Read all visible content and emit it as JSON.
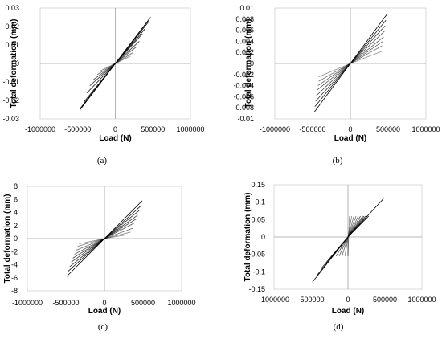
{
  "chart_data": [
    {
      "type": "line",
      "caption": "(a)",
      "xlabel": "Load (N)",
      "ylabel": "Total deformation (mm)",
      "xlim": [
        -1000000,
        1000000
      ],
      "ylim": [
        -0.03,
        0.03
      ],
      "xticks": [
        "-1000000",
        "-500000",
        "0",
        "500000",
        "1000000"
      ],
      "yticks": [
        "-0.03",
        "-0.02",
        "-0.01",
        "0",
        "0.01",
        "0.02",
        "0.03"
      ],
      "grid": false,
      "color": "#000000",
      "series": [
        {
          "x": [
            -470000,
            0,
            470000
          ],
          "y": [
            -0.025,
            0,
            0.025
          ]
        },
        {
          "x": [
            -460000,
            0,
            450000
          ],
          "y": [
            -0.024,
            0,
            0.023
          ]
        },
        {
          "x": [
            -420000,
            0,
            400000
          ],
          "y": [
            -0.021,
            0,
            0.019
          ]
        },
        {
          "x": [
            -380000,
            0,
            360000
          ],
          "y": [
            -0.016,
            0,
            0.016
          ]
        },
        {
          "x": [
            -340000,
            0,
            320000
          ],
          "y": [
            -0.012,
            0,
            0.012
          ]
        },
        {
          "x": [
            -300000,
            0,
            280000
          ],
          "y": [
            -0.009,
            0,
            0.009
          ]
        },
        {
          "x": [
            -240000,
            0,
            240000
          ],
          "y": [
            -0.006,
            0,
            0.006
          ]
        },
        {
          "x": [
            -200000,
            0,
            200000
          ],
          "y": [
            -0.004,
            0,
            0.004
          ]
        }
      ]
    },
    {
      "type": "line",
      "caption": "(b)",
      "xlabel": "Load (N)",
      "ylabel": "Total deformation (mm)",
      "xlim": [
        -1000000,
        1000000
      ],
      "ylim": [
        -0.01,
        0.01
      ],
      "xticks": [
        "-1000000",
        "-500000",
        "0",
        "500000",
        "1000000"
      ],
      "yticks": [
        "-0.01",
        "-0.008",
        "-0.006",
        "-0.004",
        "-0.002",
        "0",
        "0.002",
        "0.004",
        "0.006",
        "0.008",
        "0.01"
      ],
      "grid": false,
      "color": "#000000",
      "series": [
        {
          "x": [
            -480000,
            0,
            480000
          ],
          "y": [
            -0.0088,
            0,
            0.0088
          ]
        },
        {
          "x": [
            -470000,
            0,
            470000
          ],
          "y": [
            -0.0078,
            0,
            0.0078
          ]
        },
        {
          "x": [
            -460000,
            0,
            460000
          ],
          "y": [
            -0.0068,
            0,
            0.0068
          ]
        },
        {
          "x": [
            -450000,
            0,
            450000
          ],
          "y": [
            -0.0058,
            0,
            0.0058
          ]
        },
        {
          "x": [
            -440000,
            0,
            440000
          ],
          "y": [
            -0.0048,
            0,
            0.0048
          ]
        },
        {
          "x": [
            -430000,
            0,
            430000
          ],
          "y": [
            -0.004,
            0,
            0.004
          ]
        },
        {
          "x": [
            -420000,
            0,
            420000
          ],
          "y": [
            -0.0032,
            0,
            0.0032
          ]
        },
        {
          "x": [
            -420000,
            0,
            420000
          ],
          "y": [
            -0.0024,
            0,
            0.0022
          ]
        }
      ]
    },
    {
      "type": "line",
      "caption": "(c)",
      "xlabel": "Load (N)",
      "ylabel": "Total deformation (mm)",
      "xlim": [
        -1000000,
        1000000
      ],
      "ylim": [
        -8,
        8
      ],
      "xticks": [
        "-1000000",
        "-500000",
        "0",
        "500000",
        "1000000"
      ],
      "yticks": [
        "-8",
        "-6",
        "-4",
        "-2",
        "0",
        "2",
        "4",
        "6",
        "8"
      ],
      "grid": false,
      "color": "#000000",
      "series": [
        {
          "x": [
            -490000,
            0,
            490000
          ],
          "y": [
            -5.8,
            0,
            5.8
          ]
        },
        {
          "x": [
            -470000,
            0,
            470000
          ],
          "y": [
            -5.0,
            0,
            5.0
          ]
        },
        {
          "x": [
            -450000,
            0,
            450000
          ],
          "y": [
            -4.3,
            0,
            4.3
          ]
        },
        {
          "x": [
            -430000,
            0,
            430000
          ],
          "y": [
            -3.6,
            0,
            3.6
          ]
        },
        {
          "x": [
            -410000,
            0,
            410000
          ],
          "y": [
            -3.0,
            0,
            3.0
          ]
        },
        {
          "x": [
            -390000,
            0,
            390000
          ],
          "y": [
            -2.4,
            0,
            2.4
          ]
        },
        {
          "x": [
            -370000,
            0,
            370000
          ],
          "y": [
            -1.8,
            0,
            1.6
          ]
        },
        {
          "x": [
            -350000,
            0,
            340000
          ],
          "y": [
            -1.2,
            0,
            1.0
          ]
        },
        {
          "x": [
            -330000,
            0,
            300000
          ],
          "y": [
            -0.8,
            0,
            0.6
          ]
        }
      ]
    },
    {
      "type": "line",
      "caption": "(d)",
      "xlabel": "Load (N)",
      "ylabel": "Total deformation (mm)",
      "xlim": [
        -1000000,
        1000000
      ],
      "ylim": [
        -0.15,
        0.15
      ],
      "xticks": [
        "-1000000",
        "-500000",
        "0",
        "500000",
        "1000000"
      ],
      "yticks": [
        "-0.15",
        "-0.1",
        "-0.05",
        "0",
        "0.05",
        "0.1",
        "0.15"
      ],
      "grid": false,
      "color": "#000000",
      "series": [
        {
          "x": [
            -480000,
            0,
            480000
          ],
          "y": [
            -0.13,
            0,
            0.11
          ]
        },
        {
          "x": [
            -420000,
            0,
            280000
          ],
          "y": [
            -0.11,
            0,
            0.06
          ]
        },
        {
          "x": [
            -360000,
            0,
            260000
          ],
          "y": [
            -0.09,
            0,
            0.06
          ]
        },
        {
          "x": [
            -300000,
            0,
            240000
          ],
          "y": [
            -0.075,
            0,
            0.06
          ]
        },
        {
          "x": [
            -240000,
            0,
            220000
          ],
          "y": [
            -0.06,
            0,
            0.06
          ]
        },
        {
          "x": [
            -200000,
            0,
            200000
          ],
          "y": [
            -0.055,
            0,
            0.06
          ]
        },
        {
          "x": [
            -160000,
            0,
            170000
          ],
          "y": [
            -0.055,
            0,
            0.06
          ]
        },
        {
          "x": [
            -120000,
            0,
            140000
          ],
          "y": [
            -0.055,
            0,
            0.06
          ]
        },
        {
          "x": [
            -80000,
            0,
            110000
          ],
          "y": [
            -0.055,
            0,
            0.06
          ]
        },
        {
          "x": [
            -40000,
            0,
            80000
          ],
          "y": [
            -0.055,
            0,
            0.06
          ]
        },
        {
          "x": [
            0,
            0,
            50000
          ],
          "y": [
            -0.055,
            0,
            0.06
          ]
        },
        {
          "x": [
            0,
            20000
          ],
          "y": [
            -0.055,
            0.06
          ]
        }
      ]
    }
  ]
}
